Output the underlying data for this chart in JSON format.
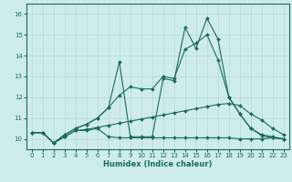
{
  "xlabel": "Humidex (Indice chaleur)",
  "background_color": "#ceecea",
  "grid_color": "#b8d8d5",
  "line_color": "#1a6b5e",
  "xlim": [
    -0.5,
    23.5
  ],
  "ylim": [
    9.5,
    16.5
  ],
  "yticks": [
    10,
    11,
    12,
    13,
    14,
    15,
    16
  ],
  "xticks": [
    0,
    1,
    2,
    3,
    4,
    5,
    6,
    7,
    8,
    9,
    10,
    11,
    12,
    13,
    14,
    15,
    16,
    17,
    18,
    19,
    20,
    21,
    22,
    23
  ],
  "line1": [
    10.3,
    10.3,
    9.8,
    10.1,
    10.4,
    10.4,
    10.5,
    10.1,
    10.05,
    10.05,
    10.05,
    10.05,
    10.05,
    10.05,
    10.05,
    10.05,
    10.05,
    10.05,
    10.05,
    10.0,
    10.0,
    10.0,
    10.05,
    10.0
  ],
  "line2": [
    10.3,
    10.3,
    9.8,
    10.1,
    10.4,
    10.45,
    10.55,
    10.65,
    10.75,
    10.85,
    10.95,
    11.05,
    11.15,
    11.25,
    11.35,
    11.45,
    11.55,
    11.65,
    11.7,
    11.6,
    11.2,
    10.9,
    10.5,
    10.2
  ],
  "line3": [
    10.3,
    10.3,
    9.8,
    10.2,
    10.5,
    10.7,
    11.0,
    11.5,
    12.1,
    12.5,
    12.4,
    12.4,
    13.0,
    12.9,
    14.3,
    14.6,
    15.0,
    13.8,
    12.0,
    11.2,
    10.5,
    10.2,
    10.1,
    10.0
  ],
  "line4": [
    10.3,
    10.3,
    9.8,
    10.2,
    10.5,
    10.7,
    11.0,
    11.5,
    13.7,
    10.1,
    10.1,
    10.1,
    12.9,
    12.8,
    15.35,
    14.35,
    15.8,
    14.8,
    12.0,
    11.2,
    10.5,
    10.15,
    10.05,
    10.0
  ]
}
